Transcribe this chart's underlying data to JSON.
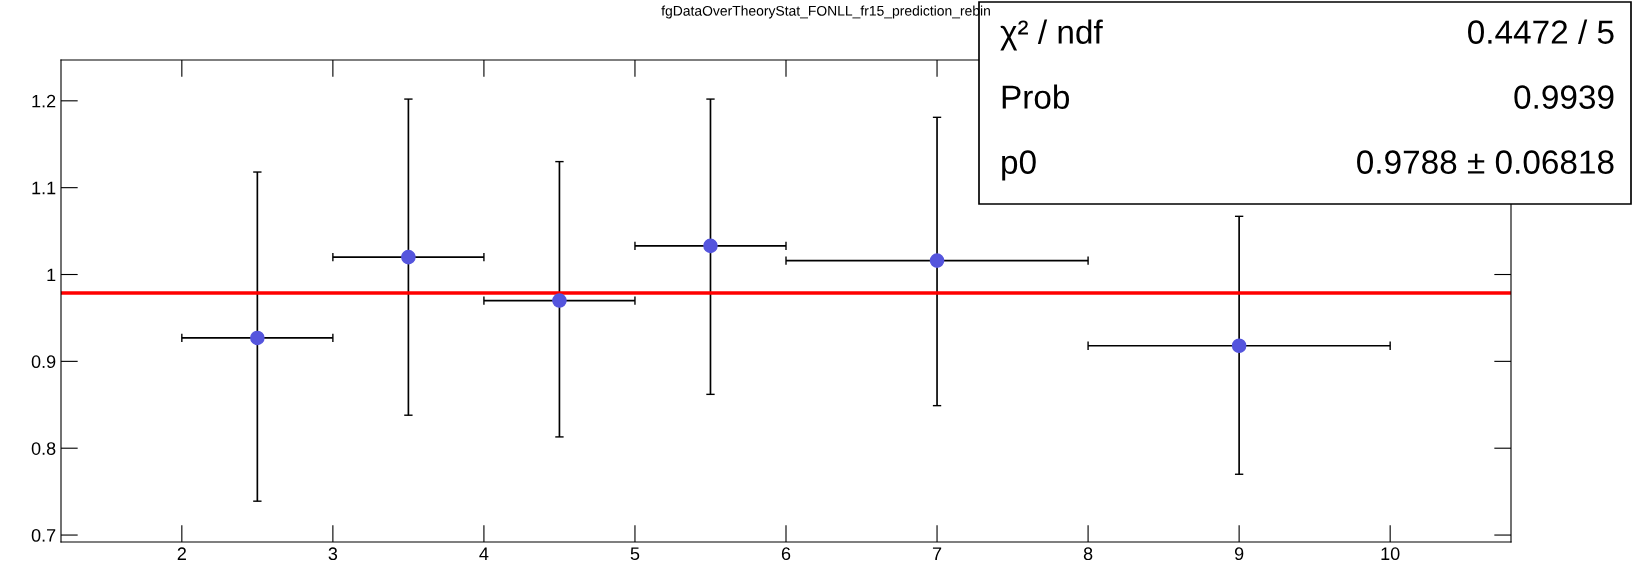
{
  "chart_data": {
    "type": "scatter",
    "title": "fgDataOverTheoryStat_FONLL_fr15_prediction_rebin",
    "x": [
      2.5,
      3.5,
      4.5,
      5.5,
      7,
      9
    ],
    "series": [
      {
        "color": "#5555dd",
        "values": [
          0.927,
          1.02,
          0.97,
          1.033,
          1.016,
          0.918
        ],
        "errors": [
          [
            0.739,
            1.118
          ],
          [
            0.838,
            1.202
          ],
          [
            0.813,
            1.13
          ],
          [
            0.862,
            1.202
          ],
          [
            0.849,
            1.181
          ],
          [
            0.77,
            1.067
          ]
        ],
        "xerrors": [
          [
            2,
            3
          ],
          [
            3,
            4
          ],
          [
            4,
            5
          ],
          [
            5,
            6
          ],
          [
            6,
            8
          ],
          [
            8,
            10
          ]
        ]
      }
    ],
    "ref_lines": [
      {
        "axis": "y",
        "value": 0.9788,
        "color": "#ff0000",
        "line_style": "solid"
      }
    ],
    "annotations": [
      "χ² / ndf",
      "0.4472 / 5",
      "Prob",
      "0.9939",
      "p0",
      "0.9788 ± 0.06818"
    ],
    "xlim": [
      1.2,
      10.8
    ],
    "ylim": [
      0.692,
      1.247
    ],
    "xticks": [
      2,
      3,
      4,
      5,
      6,
      7,
      8,
      9,
      10
    ],
    "yticks": [
      0.7,
      0.8,
      0.9,
      1,
      1.1,
      1.2
    ],
    "marker": "circle",
    "grid": false,
    "legend": false
  }
}
